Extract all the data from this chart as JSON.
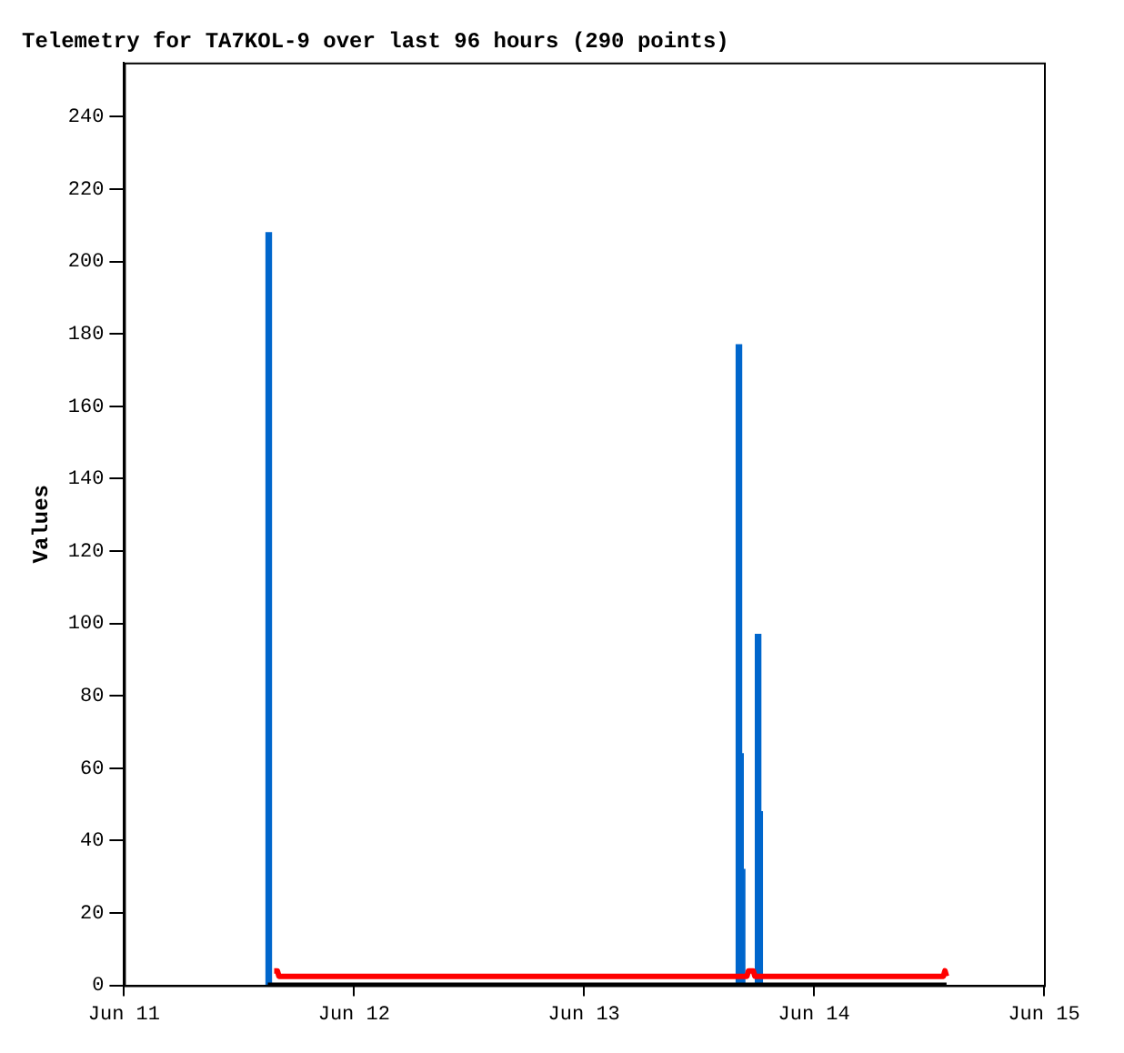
{
  "chart_data": {
    "type": "line",
    "title": "Telemetry for TA7KOL-9 over last 96 hours (290 points)",
    "ylabel": "Values",
    "xlim": [
      "--06-11",
      "--06-15"
    ],
    "xticks": [
      {
        "value": "--06-11",
        "label": "Jun 11"
      },
      {
        "value": "--06-12",
        "label": "Jun 12"
      },
      {
        "value": "--06-13",
        "label": "Jun 13"
      },
      {
        "value": "--06-14",
        "label": "Jun 14"
      },
      {
        "value": "--06-15",
        "label": "Jun 15"
      }
    ],
    "ylim": [
      0,
      255
    ],
    "yticks": [
      0,
      20,
      40,
      60,
      80,
      100,
      120,
      140,
      160,
      180,
      200,
      220,
      240
    ],
    "grid": false,
    "legend": false,
    "marker": "none",
    "line_style": "solid",
    "series": [
      {
        "type": "bar",
        "color": "#0066cc",
        "x": [
          "--06-11T15:06",
          "--06-13T16:10",
          "--06-13T16:20",
          "--06-13T16:30",
          "--06-13T18:10",
          "--06-13T18:20"
        ],
        "values": [
          208,
          177,
          64,
          32,
          97,
          48
        ]
      },
      {
        "color": "#000000",
        "x": [
          "--06-11T15:00",
          "--06-14T13:50"
        ],
        "values": [
          0,
          0
        ]
      },
      {
        "color": "#ff0000",
        "x": [
          "--06-11T15:40",
          "--06-11T16:00",
          "--06-11T16:10",
          "--06-13T17:00",
          "--06-13T17:10",
          "--06-13T17:40",
          "--06-13T17:50",
          "--06-14T13:30",
          "--06-14T13:40",
          "--06-14T13:50"
        ],
        "values": [
          4,
          4,
          2.5,
          2.5,
          4,
          4,
          2.5,
          2.5,
          4,
          2.5
        ]
      }
    ]
  }
}
